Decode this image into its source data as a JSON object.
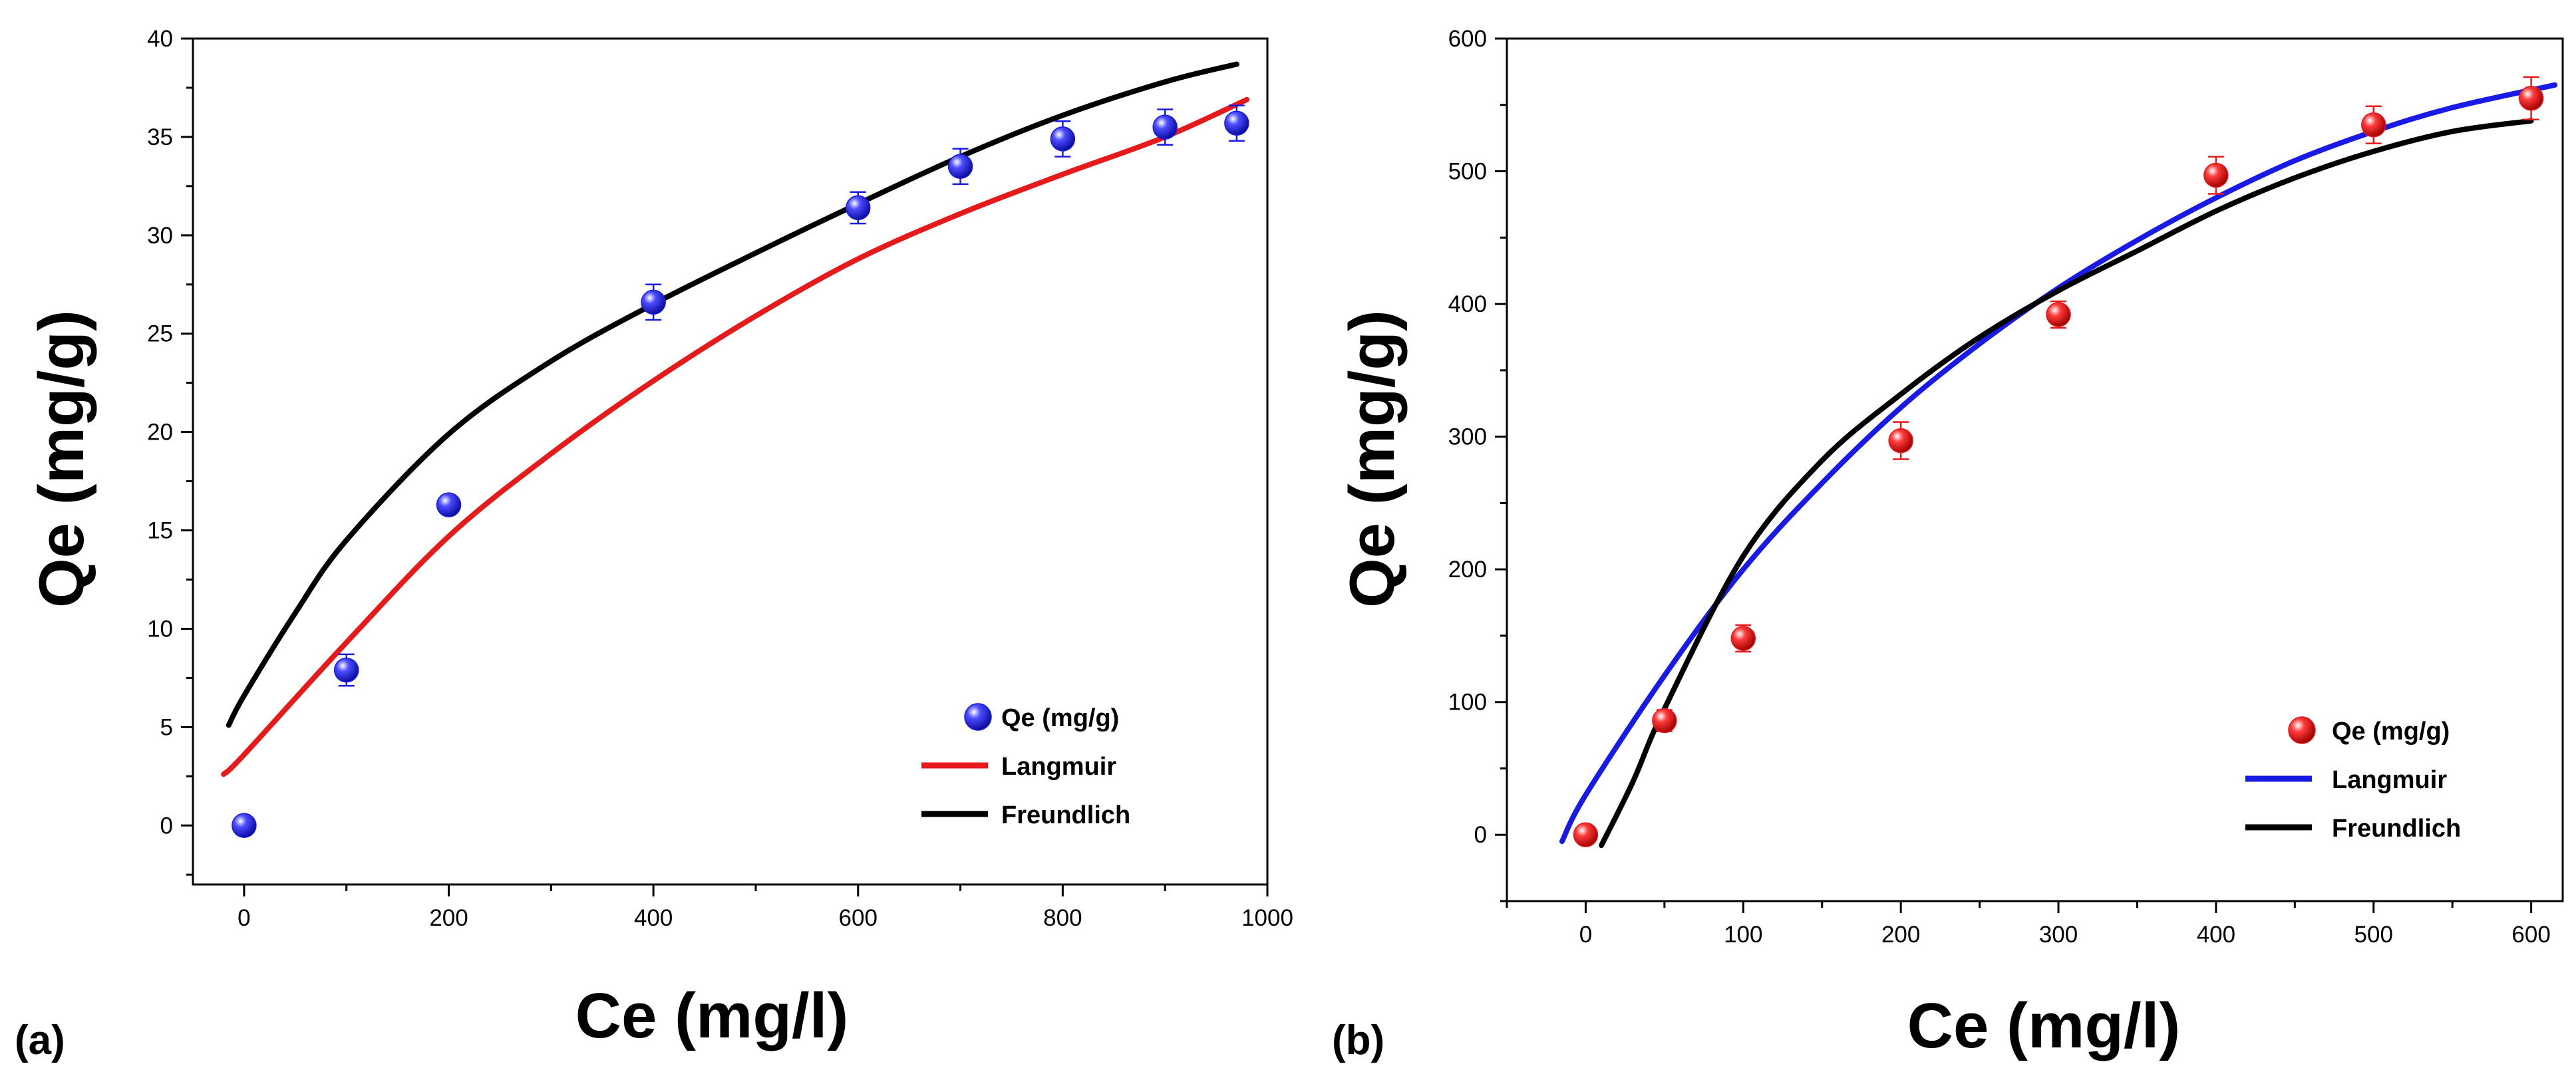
{
  "chart_data": [
    {
      "type": "scatter",
      "panel_label": "(a)",
      "xlabel": "Ce (mg/l)",
      "ylabel": "Qe (mg/g)",
      "xlim": [
        -50,
        1000
      ],
      "ylim": [
        -3,
        40
      ],
      "xticks": [
        0,
        200,
        400,
        600,
        800,
        1000
      ],
      "yticks": [
        0,
        5,
        10,
        15,
        20,
        25,
        30,
        35,
        40
      ],
      "legend_position": "bottom-right",
      "series": [
        {
          "name": "Qe (mg/g)",
          "kind": "points",
          "color": "#1a1ae6",
          "x": [
            0,
            100,
            200,
            400,
            600,
            700,
            800,
            900,
            970
          ],
          "y": [
            0,
            7.9,
            16.3,
            26.6,
            31.4,
            33.5,
            34.9,
            35.5,
            35.7
          ],
          "error": [
            0,
            0.8,
            0.4,
            0.9,
            0.8,
            0.9,
            0.9,
            0.9,
            0.9
          ]
        },
        {
          "name": "Langmuir",
          "kind": "line",
          "color": "#e61a1a",
          "x": [
            -20,
            0,
            100,
            200,
            300,
            400,
            500,
            600,
            700,
            800,
            900,
            980
          ],
          "y": [
            2.6,
            3.6,
            9.3,
            14.7,
            18.9,
            22.6,
            25.9,
            28.8,
            31.1,
            33.1,
            35.0,
            36.9
          ]
        },
        {
          "name": "Freundlich",
          "kind": "line",
          "color": "#000000",
          "x": [
            -15,
            0,
            50,
            100,
            200,
            300,
            400,
            500,
            600,
            700,
            800,
            900,
            970
          ],
          "y": [
            5.1,
            6.6,
            10.8,
            14.5,
            19.9,
            23.6,
            26.5,
            29.1,
            31.6,
            34.0,
            36.1,
            37.8,
            38.7
          ]
        }
      ]
    },
    {
      "type": "scatter",
      "panel_label": "(b)",
      "xlabel": "Ce (mg/l)",
      "ylabel": "Qe (mg/g)",
      "xlim": [
        -50,
        620
      ],
      "ylim": [
        -50,
        600
      ],
      "xticks": [
        0,
        100,
        200,
        300,
        400,
        500,
        600
      ],
      "yticks": [
        0,
        100,
        200,
        300,
        400,
        500,
        600
      ],
      "legend_position": "bottom-right",
      "series": [
        {
          "name": "Qe (mg/g)",
          "kind": "points",
          "color": "#e61a1a",
          "x": [
            0,
            50,
            100,
            200,
            300,
            400,
            500,
            600
          ],
          "y": [
            0,
            86,
            148,
            297,
            392,
            497,
            535,
            555
          ],
          "error": [
            0,
            8,
            10,
            14,
            10,
            14,
            14,
            16
          ]
        },
        {
          "name": "Langmuir",
          "kind": "line",
          "color": "#1a1ae6",
          "x": [
            -15,
            0,
            50,
            100,
            150,
            200,
            250,
            300,
            350,
            400,
            450,
            500,
            550,
            615
          ],
          "y": [
            -5,
            30,
            120,
            200,
            265,
            322,
            370,
            412,
            448,
            480,
            508,
            530,
            548,
            565
          ]
        },
        {
          "name": "Freundlich",
          "kind": "line",
          "color": "#000000",
          "x": [
            10,
            30,
            50,
            100,
            150,
            200,
            250,
            300,
            350,
            400,
            450,
            500,
            550,
            600
          ],
          "y": [
            -8,
            40,
            95,
            210,
            282,
            332,
            375,
            410,
            440,
            470,
            495,
            515,
            530,
            538
          ]
        }
      ]
    }
  ]
}
